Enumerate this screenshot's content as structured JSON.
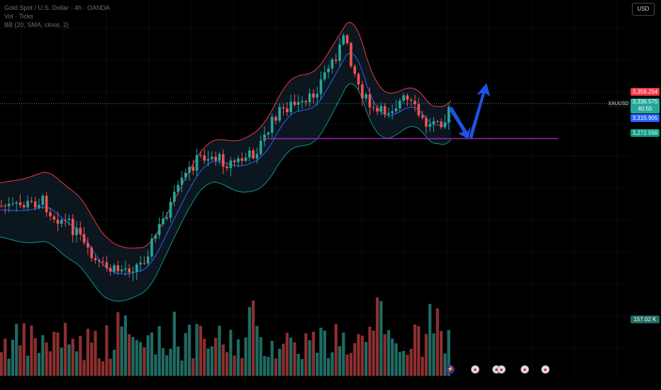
{
  "legend": {
    "symbol_line": "Gold Spot / U.S. Dollar · 4h · OANDA",
    "volume_line": "Vol · Ticks",
    "bb_line": "BB (20, SMA, close, 2)"
  },
  "currency_button": "USD",
  "ticker_label": "XAUUSD",
  "price_labels": {
    "upper_band": "3,359.254",
    "last_price": "3,336.575",
    "countdown": "40:55",
    "basis": "3,315.905",
    "lower_band": "3,272.556",
    "volume": "157.02 K"
  },
  "colors": {
    "up": "#26a69a",
    "down": "#ef5350",
    "upper_band": "#f23645",
    "basis": "#2962ff",
    "lower_band": "#089981",
    "support_line": "#9c27b0",
    "arrows": "#1e53e5",
    "volume_up": "#1f6b62",
    "volume_down": "#8c2f2f"
  },
  "support_level": 3272.556,
  "events": [
    {
      "icon": "flash-icon",
      "glyph": "⚡"
    },
    {
      "icon": "us-flag-icon",
      "glyph": "★"
    },
    {
      "icon": "us-flag-icon",
      "glyph": "★"
    },
    {
      "icon": "us-flag-icon",
      "glyph": "★"
    },
    {
      "icon": "us-flag-icon",
      "glyph": "★"
    },
    {
      "icon": "us-flag-icon",
      "glyph": "★"
    }
  ]
}
